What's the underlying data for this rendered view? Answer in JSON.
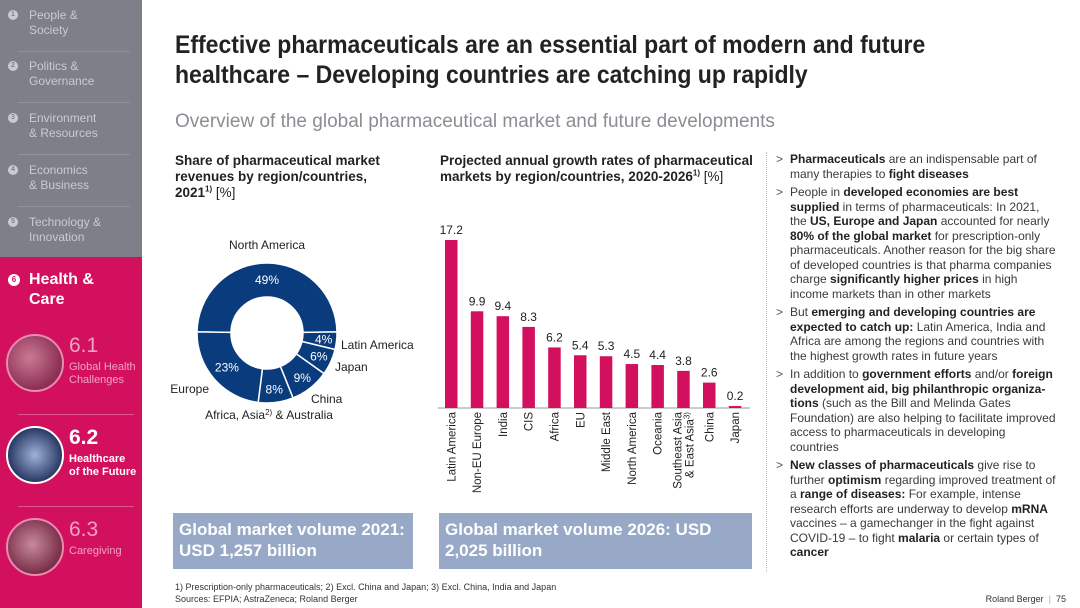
{
  "sidebar": {
    "items": [
      {
        "num": "1",
        "label": "People &\nSociety"
      },
      {
        "num": "2",
        "label": "Politics &\nGovernance"
      },
      {
        "num": "3",
        "label": "Environment\n& Resources"
      },
      {
        "num": "4",
        "label": "Economics\n& Business"
      },
      {
        "num": "5",
        "label": "Technology &\nInnovation"
      }
    ],
    "active": {
      "num": "6",
      "label": "Health &\nCare"
    },
    "subs": [
      {
        "num": "6.1",
        "label": "Global Health\nChallenges"
      },
      {
        "num": "6.2",
        "label": "Healthcare\nof the Future"
      },
      {
        "num": "6.3",
        "label": "Caregiving"
      }
    ]
  },
  "header": {
    "title": "Effective pharmaceuticals are an essential part of modern and future healthcare – Developing countries are catching up rapidly",
    "subtitle": "Overview of the global pharmaceutical market and future developments"
  },
  "left_panel": {
    "heading": "Share of pharmaceutical market revenues by region/countries, 2021",
    "heading_sup": "1)",
    "heading_unit": " [%]",
    "volume": "Global market volume 2021: USD 1,257 billion"
  },
  "middle_panel": {
    "heading": "Projected annual growth rates of pharmaceutical markets by region/countries, 2020-2026",
    "heading_sup": "1)",
    "heading_unit": " [%]",
    "volume": "Global market volume 2026: USD 2,025 billion"
  },
  "chart_data": [
    {
      "type": "pie",
      "title": "Share of pharmaceutical market revenues by region/countries, 2021 [%]",
      "slices": [
        {
          "name": "North America",
          "value": 49,
          "label": "49%"
        },
        {
          "name": "Latin America",
          "value": 4,
          "label": "4%"
        },
        {
          "name": "Japan",
          "value": 6,
          "label": "6%"
        },
        {
          "name": "China",
          "value": 9,
          "label": "9%"
        },
        {
          "name": "Africa, Asia2) & Australia",
          "value": 8,
          "label": "8%"
        },
        {
          "name": "Europe",
          "value": 23,
          "label": "23%"
        }
      ],
      "colors": {
        "main": "#0a3c7d",
        "separator": "#ffffff"
      }
    },
    {
      "type": "bar",
      "title": "Projected annual growth rates of pharmaceutical markets by region/countries, 2020-2026 [%]",
      "categories": [
        "Latin America",
        "Non-EU Europe",
        "India",
        "CIS",
        "Africa",
        "EU",
        "Middle East",
        "North America",
        "Oceania",
        "Southeast Asia & East Asia3)",
        "China",
        "Japan"
      ],
      "values": [
        17.2,
        9.9,
        9.4,
        8.3,
        6.2,
        5.4,
        5.3,
        4.5,
        4.4,
        3.8,
        2.6,
        0.2
      ],
      "value_labels": [
        "17.2",
        "9.9",
        "9.4",
        "8.3",
        "6.2",
        "5.4",
        "5.3",
        "4.5",
        "4.4",
        "3.8",
        "2.6",
        "0.2"
      ],
      "ylim": [
        0,
        17.2
      ],
      "color": "#d3105e"
    }
  ],
  "bullets": [
    [
      {
        "t": "Pharmaceuticals",
        "b": true
      },
      {
        "t": " are an indispensable part of many therapies to "
      },
      {
        "t": "fight diseases",
        "b": true
      }
    ],
    [
      {
        "t": "People in "
      },
      {
        "t": "developed economies are best supplied",
        "b": true
      },
      {
        "t": " in terms of pharmaceuticals: In 2021, the "
      },
      {
        "t": "US, Europe and Japan",
        "b": true
      },
      {
        "t": " accounted for nearly "
      },
      {
        "t": "80% of the global market",
        "b": true
      },
      {
        "t": " for prescription-only pharmaceuticals. Another reason for the big share of developed countries is that pharma companies charge "
      },
      {
        "t": "significantly higher prices",
        "b": true
      },
      {
        "t": " in high income markets than in other markets"
      }
    ],
    [
      {
        "t": "But "
      },
      {
        "t": "emerging and developing countries are expected to catch up:",
        "b": true
      },
      {
        "t": " Latin America, India and Africa are among the regions and countries with the highest growth rates in future years"
      }
    ],
    [
      {
        "t": "In addition to "
      },
      {
        "t": "government efforts",
        "b": true
      },
      {
        "t": " and/or "
      },
      {
        "t": "foreign development aid, big philanthropic organiza-tions",
        "b": true
      },
      {
        "t": " (such as the Bill and Melinda Gates Foundation) are also helping to facilitate improved access to pharmaceuticals in developing countries"
      }
    ],
    [
      {
        "t": "New classes of pharmaceuticals",
        "b": true
      },
      {
        "t": " give rise to further "
      },
      {
        "t": "optimism",
        "b": true
      },
      {
        "t": " regarding improved treatment of a "
      },
      {
        "t": "range of diseases:",
        "b": true
      },
      {
        "t": " For example, intense research efforts are underway to develop "
      },
      {
        "t": "mRNA",
        "b": true
      },
      {
        "t": " vaccines – a gamechanger in the fight against COVID-19 – to fight "
      },
      {
        "t": "malaria",
        "b": true
      },
      {
        "t": " or certain types of "
      },
      {
        "t": "cancer",
        "b": true
      }
    ]
  ],
  "footer": {
    "notes": "1) Prescription-only pharmaceuticals;  2) Excl. China and Japan;  3) Excl. China, India and Japan",
    "sources": "Sources: EFPIA; AstraZeneca; Roland Berger",
    "brand": "Roland Berger",
    "page": "75"
  }
}
